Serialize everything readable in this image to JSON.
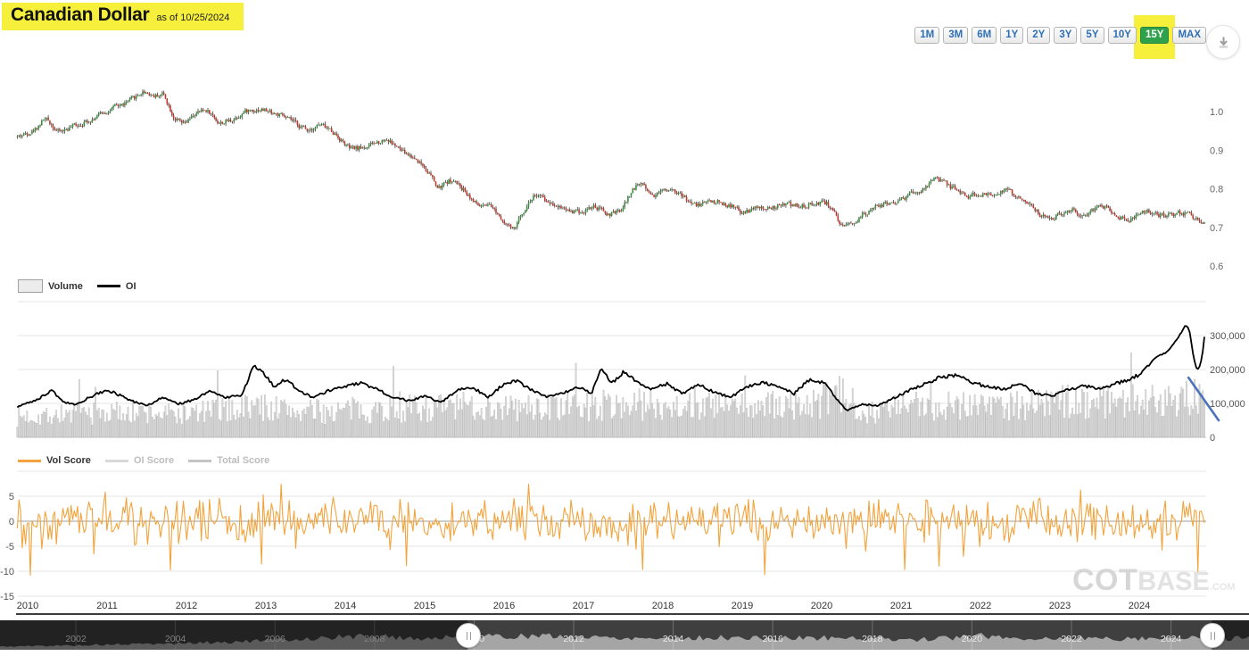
{
  "header": {
    "title": "Canadian Dollar",
    "as_of": "as of 10/25/2024"
  },
  "range_selector": {
    "buttons": [
      "1M",
      "3M",
      "6M",
      "1Y",
      "2Y",
      "3Y",
      "5Y",
      "10Y",
      "15Y",
      "MAX"
    ],
    "selected": "15Y",
    "selected_bg": "#2fa14b",
    "button_text_color": "#2f6eb5",
    "highlight_color": "#f6ef3c"
  },
  "icons": {
    "download": "download-arrow"
  },
  "legends": {
    "volume_chart": [
      {
        "label": "Volume",
        "type": "box",
        "color": "#ececec",
        "active": true
      },
      {
        "label": "OI",
        "type": "line",
        "color": "#000000",
        "active": true
      }
    ],
    "score_chart": [
      {
        "label": "Vol Score",
        "type": "line",
        "color": "#f2a33c",
        "active": true
      },
      {
        "label": "OI Score",
        "type": "line",
        "color": "#d9d9d9",
        "active": false
      },
      {
        "label": "Total Score",
        "type": "line",
        "color": "#c4c4c4",
        "active": false
      }
    ]
  },
  "watermark": {
    "cot": "COT",
    "base": "BASE",
    "com": ".COM"
  },
  "x_axis": {
    "years": [
      2010,
      2011,
      2012,
      2013,
      2014,
      2015,
      2016,
      2017,
      2018,
      2019,
      2020,
      2021,
      2022,
      2023,
      2024
    ]
  },
  "chart_data": [
    {
      "name": "price",
      "type": "candlestick",
      "interval": "weekly",
      "x_range": [
        2009.87,
        2024.82
      ],
      "y_axis": {
        "side": "right",
        "ticks": [
          [
            1.0,
            "1.0"
          ],
          [
            0.9,
            "0.9"
          ],
          [
            0.8,
            "0.8"
          ],
          [
            0.7,
            "0.7"
          ],
          [
            0.6,
            "0.6"
          ]
        ],
        "range": [
          0.6,
          1.08
        ]
      },
      "colors": {
        "up": "#3a8f3e",
        "down": "#c0392b",
        "wick": "#222222"
      },
      "anchors": [
        [
          2009.87,
          0.935
        ],
        [
          2010.08,
          0.955
        ],
        [
          2010.2,
          0.985
        ],
        [
          2010.38,
          0.945
        ],
        [
          2010.55,
          0.962
        ],
        [
          2010.75,
          0.978
        ],
        [
          2010.95,
          1.0
        ],
        [
          2011.15,
          1.015
        ],
        [
          2011.3,
          1.03
        ],
        [
          2011.45,
          1.055
        ],
        [
          2011.58,
          1.04
        ],
        [
          2011.7,
          1.048
        ],
        [
          2011.82,
          0.985
        ],
        [
          2011.95,
          0.962
        ],
        [
          2012.1,
          0.995
        ],
        [
          2012.25,
          1.005
        ],
        [
          2012.4,
          0.968
        ],
        [
          2012.55,
          0.978
        ],
        [
          2012.7,
          1.0
        ],
        [
          2012.9,
          1.008
        ],
        [
          2013.1,
          0.995
        ],
        [
          2013.3,
          0.975
        ],
        [
          2013.5,
          0.952
        ],
        [
          2013.65,
          0.968
        ],
        [
          2013.85,
          0.945
        ],
        [
          2014.05,
          0.9
        ],
        [
          2014.3,
          0.912
        ],
        [
          2014.5,
          0.932
        ],
        [
          2014.7,
          0.895
        ],
        [
          2014.9,
          0.875
        ],
        [
          2015.05,
          0.84
        ],
        [
          2015.15,
          0.795
        ],
        [
          2015.3,
          0.825
        ],
        [
          2015.5,
          0.795
        ],
        [
          2015.65,
          0.755
        ],
        [
          2015.85,
          0.748
        ],
        [
          2016.0,
          0.715
        ],
        [
          2016.1,
          0.687
        ],
        [
          2016.25,
          0.755
        ],
        [
          2016.38,
          0.79
        ],
        [
          2016.5,
          0.768
        ],
        [
          2016.65,
          0.76
        ],
        [
          2016.8,
          0.745
        ],
        [
          2016.95,
          0.74
        ],
        [
          2017.1,
          0.755
        ],
        [
          2017.3,
          0.732
        ],
        [
          2017.45,
          0.74
        ],
        [
          2017.6,
          0.8
        ],
        [
          2017.72,
          0.82
        ],
        [
          2017.85,
          0.78
        ],
        [
          2017.95,
          0.795
        ],
        [
          2018.1,
          0.805
        ],
        [
          2018.25,
          0.775
        ],
        [
          2018.4,
          0.755
        ],
        [
          2018.55,
          0.77
        ],
        [
          2018.7,
          0.765
        ],
        [
          2018.85,
          0.755
        ],
        [
          2019.0,
          0.735
        ],
        [
          2019.15,
          0.75
        ],
        [
          2019.3,
          0.745
        ],
        [
          2019.5,
          0.76
        ],
        [
          2019.7,
          0.755
        ],
        [
          2019.85,
          0.76
        ],
        [
          2020.0,
          0.77
        ],
        [
          2020.13,
          0.75
        ],
        [
          2020.22,
          0.688
        ],
        [
          2020.35,
          0.71
        ],
        [
          2020.5,
          0.735
        ],
        [
          2020.65,
          0.75
        ],
        [
          2020.8,
          0.762
        ],
        [
          2020.95,
          0.77
        ],
        [
          2021.1,
          0.785
        ],
        [
          2021.25,
          0.795
        ],
        [
          2021.42,
          0.828
        ],
        [
          2021.55,
          0.81
        ],
        [
          2021.7,
          0.795
        ],
        [
          2021.85,
          0.78
        ],
        [
          2022.0,
          0.785
        ],
        [
          2022.15,
          0.79
        ],
        [
          2022.3,
          0.798
        ],
        [
          2022.45,
          0.775
        ],
        [
          2022.6,
          0.765
        ],
        [
          2022.75,
          0.728
        ],
        [
          2022.85,
          0.72
        ],
        [
          2023.0,
          0.74
        ],
        [
          2023.15,
          0.745
        ],
        [
          2023.3,
          0.735
        ],
        [
          2023.45,
          0.755
        ],
        [
          2023.6,
          0.75
        ],
        [
          2023.75,
          0.728
        ],
        [
          2023.88,
          0.72
        ],
        [
          2024.0,
          0.748
        ],
        [
          2024.12,
          0.74
        ],
        [
          2024.25,
          0.728
        ],
        [
          2024.4,
          0.732
        ],
        [
          2024.55,
          0.738
        ],
        [
          2024.65,
          0.73
        ],
        [
          2024.75,
          0.718
        ],
        [
          2024.82,
          0.72
        ]
      ],
      "render": {
        "seed": 42,
        "body_noise": 0.013,
        "wick_noise": 0.0065,
        "weeks": 730
      }
    },
    {
      "name": "volume_oi",
      "type": "bar+line",
      "y_axis": {
        "side": "right",
        "ticks": [
          [
            300000,
            "300,000"
          ],
          [
            200000,
            "200,000"
          ],
          [
            100000,
            "100,000"
          ],
          [
            0,
            "0"
          ]
        ],
        "gridlines": [
          400000,
          300000,
          200000,
          100000
        ]
      },
      "series": [
        {
          "name": "Volume",
          "type": "bar",
          "fill": "#e6e6e6",
          "stroke": "#9f9f9f",
          "anchors": [
            [
              2009.87,
              60000
            ],
            [
              2010.6,
              70000
            ],
            [
              2011.2,
              72000
            ],
            [
              2012.0,
              68000
            ],
            [
              2012.85,
              92000
            ],
            [
              2013.5,
              74000
            ],
            [
              2014.2,
              80000
            ],
            [
              2015.0,
              86000
            ],
            [
              2015.6,
              90000
            ],
            [
              2016.2,
              84000
            ],
            [
              2017.0,
              92000
            ],
            [
              2017.6,
              96000
            ],
            [
              2018.2,
              95000
            ],
            [
              2019.0,
              88000
            ],
            [
              2019.9,
              95000
            ],
            [
              2020.2,
              125000
            ],
            [
              2020.6,
              75000
            ],
            [
              2021.2,
              92000
            ],
            [
              2021.8,
              100000
            ],
            [
              2022.4,
              96000
            ],
            [
              2023.0,
              102000
            ],
            [
              2023.6,
              110000
            ],
            [
              2024.1,
              106000
            ],
            [
              2024.5,
              122000
            ],
            [
              2024.82,
              112000
            ]
          ]
        },
        {
          "name": "OI",
          "type": "line",
          "color": "#000000",
          "anchors": [
            [
              2009.87,
              90000
            ],
            [
              2010.15,
              115000
            ],
            [
              2010.3,
              140000
            ],
            [
              2010.45,
              105000
            ],
            [
              2010.6,
              95000
            ],
            [
              2010.8,
              120000
            ],
            [
              2011.0,
              140000
            ],
            [
              2011.15,
              125000
            ],
            [
              2011.35,
              105000
            ],
            [
              2011.5,
              92000
            ],
            [
              2011.7,
              118000
            ],
            [
              2011.9,
              98000
            ],
            [
              2012.1,
              112000
            ],
            [
              2012.3,
              138000
            ],
            [
              2012.5,
              118000
            ],
            [
              2012.7,
              125000
            ],
            [
              2012.85,
              212000
            ],
            [
              2012.95,
              195000
            ],
            [
              2013.1,
              150000
            ],
            [
              2013.25,
              172000
            ],
            [
              2013.45,
              132000
            ],
            [
              2013.6,
              118000
            ],
            [
              2013.8,
              138000
            ],
            [
              2014.0,
              150000
            ],
            [
              2014.2,
              160000
            ],
            [
              2014.4,
              142000
            ],
            [
              2014.6,
              118000
            ],
            [
              2014.8,
              108000
            ],
            [
              2015.0,
              122000
            ],
            [
              2015.2,
              102000
            ],
            [
              2015.4,
              138000
            ],
            [
              2015.6,
              148000
            ],
            [
              2015.8,
              118000
            ],
            [
              2016.0,
              158000
            ],
            [
              2016.15,
              168000
            ],
            [
              2016.35,
              138000
            ],
            [
              2016.55,
              118000
            ],
            [
              2016.75,
              132000
            ],
            [
              2016.95,
              148000
            ],
            [
              2017.1,
              128000
            ],
            [
              2017.22,
              208000
            ],
            [
              2017.35,
              158000
            ],
            [
              2017.5,
              192000
            ],
            [
              2017.65,
              168000
            ],
            [
              2017.85,
              142000
            ],
            [
              2018.05,
              158000
            ],
            [
              2018.25,
              128000
            ],
            [
              2018.45,
              158000
            ],
            [
              2018.65,
              132000
            ],
            [
              2018.85,
              118000
            ],
            [
              2019.05,
              148000
            ],
            [
              2019.25,
              162000
            ],
            [
              2019.45,
              152000
            ],
            [
              2019.65,
              128000
            ],
            [
              2019.85,
              172000
            ],
            [
              2020.05,
              158000
            ],
            [
              2020.2,
              108000
            ],
            [
              2020.32,
              78000
            ],
            [
              2020.5,
              98000
            ],
            [
              2020.7,
              92000
            ],
            [
              2020.9,
              115000
            ],
            [
              2021.1,
              138000
            ],
            [
              2021.3,
              158000
            ],
            [
              2021.5,
              178000
            ],
            [
              2021.7,
              182000
            ],
            [
              2021.9,
              162000
            ],
            [
              2022.1,
              148000
            ],
            [
              2022.3,
              142000
            ],
            [
              2022.5,
              158000
            ],
            [
              2022.7,
              128000
            ],
            [
              2022.9,
              122000
            ],
            [
              2023.1,
              140000
            ],
            [
              2023.3,
              152000
            ],
            [
              2023.5,
              142000
            ],
            [
              2023.7,
              158000
            ],
            [
              2023.9,
              172000
            ],
            [
              2024.05,
              192000
            ],
            [
              2024.2,
              235000
            ],
            [
              2024.35,
              252000
            ],
            [
              2024.45,
              282000
            ],
            [
              2024.52,
              305000
            ],
            [
              2024.58,
              330000
            ],
            [
              2024.63,
              318000
            ],
            [
              2024.67,
              255000
            ],
            [
              2024.71,
              208000
            ],
            [
              2024.75,
              200000
            ],
            [
              2024.79,
              235000
            ],
            [
              2024.82,
              298000
            ]
          ]
        }
      ],
      "annotation": {
        "type": "trendline",
        "color": "#4a73bc",
        "from": [
          2024.62,
          176000
        ],
        "to": [
          2025.0,
          50000
        ]
      },
      "render": {
        "seed": 7,
        "bar_jitter": 0.5,
        "spike_prob": 0.018,
        "spike_mult": 1.85,
        "oi_noise": 0.06
      }
    },
    {
      "name": "scores",
      "type": "line",
      "series": [
        {
          "name": "Vol Score",
          "color": "#f2a33c"
        }
      ],
      "y_axis": {
        "side": "left",
        "ticks": [
          [
            5,
            "5"
          ],
          [
            0,
            "0"
          ],
          [
            -5,
            "-5"
          ],
          [
            -10,
            "-10"
          ],
          [
            -15,
            "-15"
          ]
        ],
        "gridlines": [
          10,
          5,
          -5,
          -10,
          -15
        ],
        "zero_line": 0,
        "range": [
          -15,
          10
        ]
      },
      "render": {
        "seed": 77,
        "amp": 4.3,
        "spike_prob": 0.05,
        "spike_mult": 1.55,
        "min": -11,
        "max": 7.4
      }
    },
    {
      "name": "navigator",
      "type": "area",
      "years": [
        2002,
        2004,
        2006,
        2008,
        2010,
        2012,
        2014,
        2016,
        2018,
        2020,
        2022,
        2024
      ],
      "window": [
        2009.87,
        2024.82
      ],
      "colors": {
        "bg": "#3f3f3f",
        "area": "#a5a5a5",
        "mask": "rgba(0,0,0,0.45)",
        "label": "#e8e8e8"
      },
      "anchors": [
        [
          2000.5,
          3
        ],
        [
          2002,
          4.5
        ],
        [
          2003,
          5.5
        ],
        [
          2004,
          6.5
        ],
        [
          2005,
          8
        ],
        [
          2006,
          10
        ],
        [
          2007,
          13
        ],
        [
          2008,
          15
        ],
        [
          2008.8,
          12
        ],
        [
          2009.5,
          13
        ],
        [
          2010,
          14
        ],
        [
          2011,
          15
        ],
        [
          2012,
          14
        ],
        [
          2013,
          13
        ],
        [
          2014,
          12.5
        ],
        [
          2015,
          13
        ],
        [
          2016,
          12
        ],
        [
          2017,
          13
        ],
        [
          2018,
          12
        ],
        [
          2019,
          11
        ],
        [
          2020.2,
          15
        ],
        [
          2021,
          12
        ],
        [
          2022,
          12.5
        ],
        [
          2023,
          12
        ],
        [
          2024,
          13
        ],
        [
          2026,
          12
        ]
      ],
      "render": {
        "seed": 5
      }
    }
  ]
}
